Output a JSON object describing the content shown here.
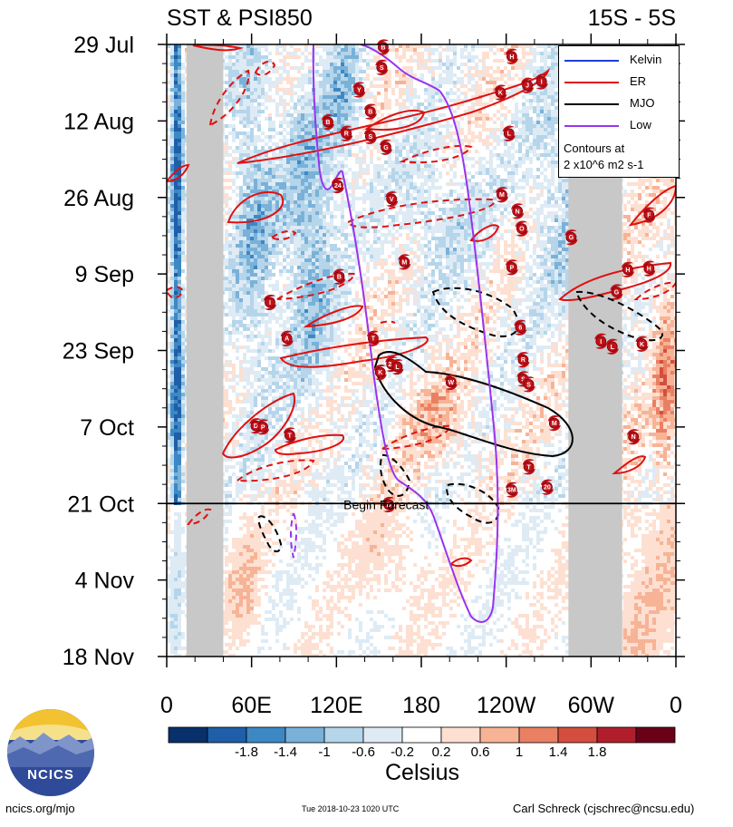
{
  "header": {
    "title": "SST & PSI850",
    "region": "15S - 5S"
  },
  "chart_data": {
    "type": "heatmap",
    "title": "SST & PSI850",
    "subtitle": "15S - 5S",
    "xlabel": "",
    "ylabel": "",
    "x_range_deg": [
      0,
      360
    ],
    "x_ticks": [
      {
        "deg": 0,
        "label": "0"
      },
      {
        "deg": 60,
        "label": "60E"
      },
      {
        "deg": 120,
        "label": "120E"
      },
      {
        "deg": 180,
        "label": "180"
      },
      {
        "deg": 240,
        "label": "120W"
      },
      {
        "deg": 300,
        "label": "60W"
      },
      {
        "deg": 360,
        "label": "0"
      }
    ],
    "y_range_days": [
      0,
      112
    ],
    "y_ticks": [
      {
        "day": 0,
        "label": "29 Jul"
      },
      {
        "day": 14,
        "label": "12 Aug"
      },
      {
        "day": 28,
        "label": "26 Aug"
      },
      {
        "day": 42,
        "label": "9 Sep"
      },
      {
        "day": 56,
        "label": "23 Sep"
      },
      {
        "day": 70,
        "label": "7 Oct"
      },
      {
        "day": 84,
        "label": "21 Oct"
      },
      {
        "day": 98,
        "label": "4 Nov"
      },
      {
        "day": 112,
        "label": "18 Nov"
      }
    ],
    "forecast_start_day": 84,
    "forecast_label": "Begin Forecast",
    "colorbar": {
      "label": "Celsius",
      "tick_labels": [
        "-1.8",
        "-1.4",
        "-1",
        "-0.6",
        "-0.2",
        "0.2",
        "0.6",
        "1",
        "1.4",
        "1.8"
      ],
      "colors": [
        "#08306b",
        "#1f5ea8",
        "#3c88c4",
        "#79b1d8",
        "#b5d5ea",
        "#deebf5",
        "#ffffff",
        "#fde0d2",
        "#f7b396",
        "#ea8063",
        "#d44e3f",
        "#b01e2c",
        "#6b0019"
      ]
    },
    "land_mask_deg": [
      [
        14,
        40
      ],
      [
        284,
        322
      ]
    ],
    "legend": {
      "placement": "top-right",
      "entries": [
        {
          "name": "Kelvin",
          "color": "#1f3fd6"
        },
        {
          "name": "ER",
          "color": "#e01010"
        },
        {
          "name": "MJO",
          "color": "#000000"
        },
        {
          "name": "Low",
          "color": "#9933ee"
        }
      ],
      "note_line1": "Contours at",
      "note_line2": "2 x10^6 m2 s-1"
    },
    "storms": [
      {
        "deg": 153,
        "day": 0.5,
        "letter": "B"
      },
      {
        "deg": 152,
        "day": 4.2,
        "letter": "S"
      },
      {
        "deg": 136,
        "day": 8.3,
        "letter": "Y"
      },
      {
        "deg": 144,
        "day": 12.3,
        "letter": "B"
      },
      {
        "deg": 114,
        "day": 14.2,
        "letter": "B"
      },
      {
        "deg": 127,
        "day": 16.3,
        "letter": "R"
      },
      {
        "deg": 144,
        "day": 16.8,
        "letter": "S"
      },
      {
        "deg": 155,
        "day": 18.8,
        "letter": "G"
      },
      {
        "deg": 244,
        "day": 2.2,
        "letter": "H"
      },
      {
        "deg": 236,
        "day": 8.8,
        "letter": "K"
      },
      {
        "deg": 255,
        "day": 7.5,
        "letter": "J"
      },
      {
        "deg": 265,
        "day": 6.8,
        "letter": "I"
      },
      {
        "deg": 242,
        "day": 16.3,
        "letter": "L"
      },
      {
        "deg": 121,
        "day": 25.8,
        "letter": "24"
      },
      {
        "deg": 159,
        "day": 28.3,
        "letter": "V"
      },
      {
        "deg": 237,
        "day": 27.5,
        "letter": "M"
      },
      {
        "deg": 248,
        "day": 30.5,
        "letter": "N"
      },
      {
        "deg": 251,
        "day": 33.7,
        "letter": "O"
      },
      {
        "deg": 286,
        "day": 35.3,
        "letter": "G"
      },
      {
        "deg": 341,
        "day": 31.2,
        "letter": "F"
      },
      {
        "deg": 168,
        "day": 39.8,
        "letter": "M"
      },
      {
        "deg": 244,
        "day": 40.8,
        "letter": "P"
      },
      {
        "deg": 326,
        "day": 41.2,
        "letter": "H"
      },
      {
        "deg": 341,
        "day": 41.0,
        "letter": "H"
      },
      {
        "deg": 122,
        "day": 42.5,
        "letter": "B"
      },
      {
        "deg": 73,
        "day": 47.2,
        "letter": "I"
      },
      {
        "deg": 318,
        "day": 45.3,
        "letter": "G"
      },
      {
        "deg": 250,
        "day": 51.8,
        "letter": "6"
      },
      {
        "deg": 146,
        "day": 53.8,
        "letter": "T"
      },
      {
        "deg": 85,
        "day": 53.8,
        "letter": "A"
      },
      {
        "deg": 307,
        "day": 54.3,
        "letter": "I"
      },
      {
        "deg": 315,
        "day": 55.3,
        "letter": "L"
      },
      {
        "deg": 336,
        "day": 54.8,
        "letter": "K"
      },
      {
        "deg": 159,
        "day": 58.5,
        "letter": "28"
      },
      {
        "deg": 163,
        "day": 59.0,
        "letter": "L"
      },
      {
        "deg": 151,
        "day": 60.0,
        "letter": "K"
      },
      {
        "deg": 252,
        "day": 57.7,
        "letter": "R"
      },
      {
        "deg": 252,
        "day": 61.2,
        "letter": "S"
      },
      {
        "deg": 201,
        "day": 61.8,
        "letter": "W"
      },
      {
        "deg": 256,
        "day": 62.2,
        "letter": "S"
      },
      {
        "deg": 63,
        "day": 69.8,
        "letter": "D"
      },
      {
        "deg": 68,
        "day": 70.0,
        "letter": "P"
      },
      {
        "deg": 87,
        "day": 71.5,
        "letter": "T"
      },
      {
        "deg": 274,
        "day": 69.3,
        "letter": "M"
      },
      {
        "deg": 330,
        "day": 71.8,
        "letter": "N"
      },
      {
        "deg": 256,
        "day": 77.3,
        "letter": "T"
      },
      {
        "deg": 244,
        "day": 81.5,
        "letter": "3M"
      },
      {
        "deg": 269,
        "day": 81.0,
        "letter": "20"
      },
      {
        "deg": 157,
        "day": 84.2,
        "letter": "D"
      }
    ],
    "contour_stroke_scale": 1
  },
  "footer": {
    "left": "ncics.org/mjo",
    "center": "Tue 2018-10-23 1020 UTC",
    "right": "Carl Schreck (cjschrec@ncsu.edu)"
  },
  "logo": {
    "text": "NCICS"
  }
}
